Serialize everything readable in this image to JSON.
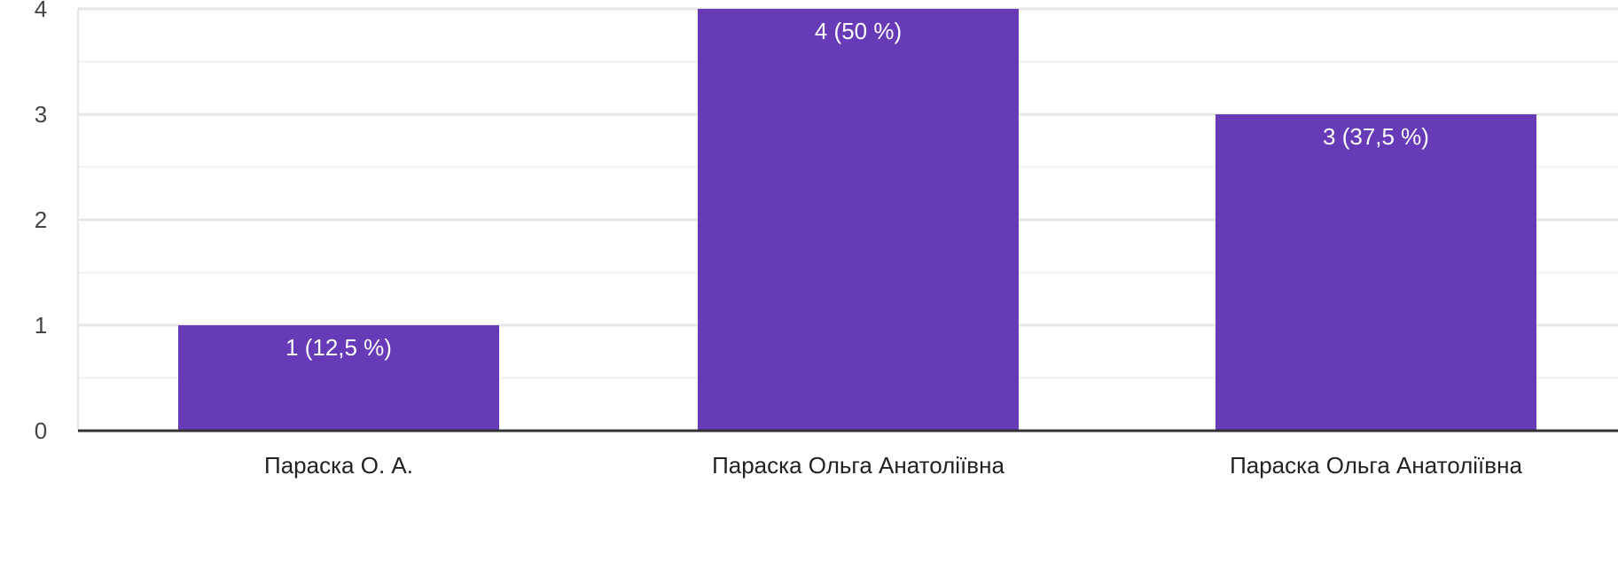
{
  "chart_data": {
    "type": "bar",
    "categories": [
      "Параска О. А.",
      "Параска Ольга Анатоліївна",
      "Параска Ольга Анатоліївна"
    ],
    "values": [
      1,
      4,
      3
    ],
    "data_labels": [
      "1 (12,5 %)",
      "4 (50 %)",
      "3 (37,5 %)"
    ],
    "y_ticks": [
      "0",
      "1",
      "2",
      "3",
      "4"
    ],
    "ylim": [
      0,
      4
    ],
    "minor_gridlines": true,
    "grid": true,
    "colors": {
      "bar": "#673ab7",
      "grid_major": "#e6e6e6",
      "grid_minor": "#f2f2f2",
      "axis": "#333333"
    }
  }
}
